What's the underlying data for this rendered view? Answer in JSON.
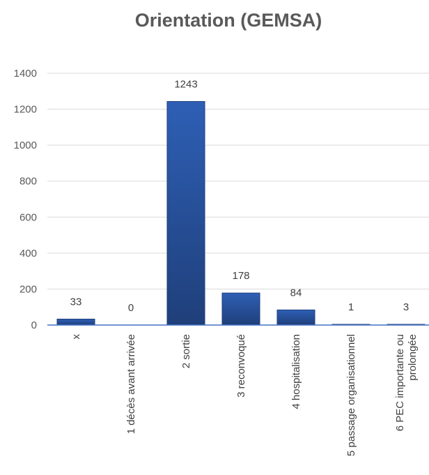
{
  "chart_data": {
    "type": "bar",
    "title": "Orientation (GEMSA)",
    "xlabel": "",
    "ylabel": "",
    "ylim": [
      0,
      1400
    ],
    "yticks": [
      0,
      200,
      400,
      600,
      800,
      1000,
      1200,
      1400
    ],
    "grid": true,
    "legend": "none",
    "categories": [
      [
        "x"
      ],
      [
        "1 décès avant arrivée"
      ],
      [
        "2 sortie"
      ],
      [
        "3 reconvoqué"
      ],
      [
        "4 hospitalisation"
      ],
      [
        "5 passage organisationnel"
      ],
      [
        "6 PEC importante ou",
        "prolongée"
      ]
    ],
    "values": [
      33,
      0,
      1243,
      178,
      84,
      1,
      3
    ],
    "data_labels": [
      "33",
      "0",
      "1243",
      "178",
      "84",
      "1",
      "3"
    ],
    "bar_color": "#2e5fb5",
    "bar_color_dark": "#1f3f7a"
  }
}
